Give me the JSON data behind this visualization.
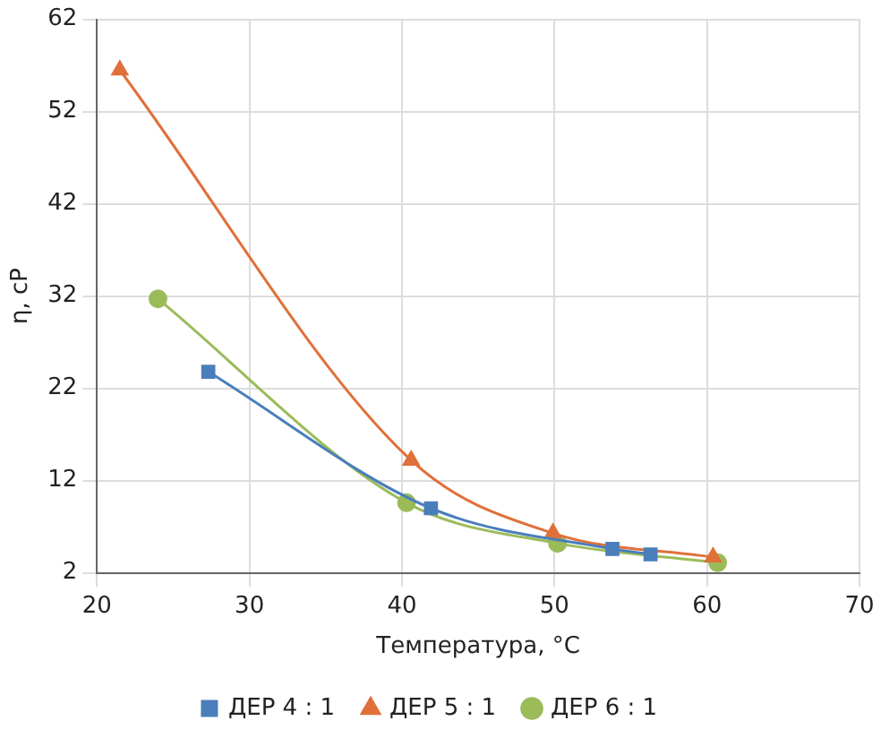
{
  "chart_data": {
    "type": "line",
    "xlabel": "Температура, °C",
    "ylabel": "η, cP",
    "xlim": [
      20,
      70
    ],
    "xticks": [
      20,
      30,
      40,
      50,
      60,
      70
    ],
    "ylim": [
      2,
      62
    ],
    "yticks": [
      2,
      12,
      22,
      32,
      42,
      52,
      62
    ],
    "grid": true,
    "legend": "bottom",
    "series": [
      {
        "name": "ДЕР 4 : 1",
        "color": "#4a7ebb",
        "marker": "square",
        "x": [
          27.3,
          41.9,
          53.8,
          56.3
        ],
        "values": [
          23.8,
          9.0,
          4.6,
          4.0
        ]
      },
      {
        "name": "ДЕР 5 : 1",
        "color": "#e0703a",
        "marker": "triangle",
        "x": [
          21.5,
          40.6,
          49.9,
          60.4
        ],
        "values": [
          56.5,
          14.2,
          6.3,
          3.7
        ]
      },
      {
        "name": "ДЕР 6 : 1",
        "color": "#9bbb59",
        "marker": "circle",
        "x": [
          24.0,
          40.3,
          50.2,
          60.7
        ],
        "values": [
          31.7,
          9.6,
          5.2,
          3.1
        ]
      }
    ]
  }
}
